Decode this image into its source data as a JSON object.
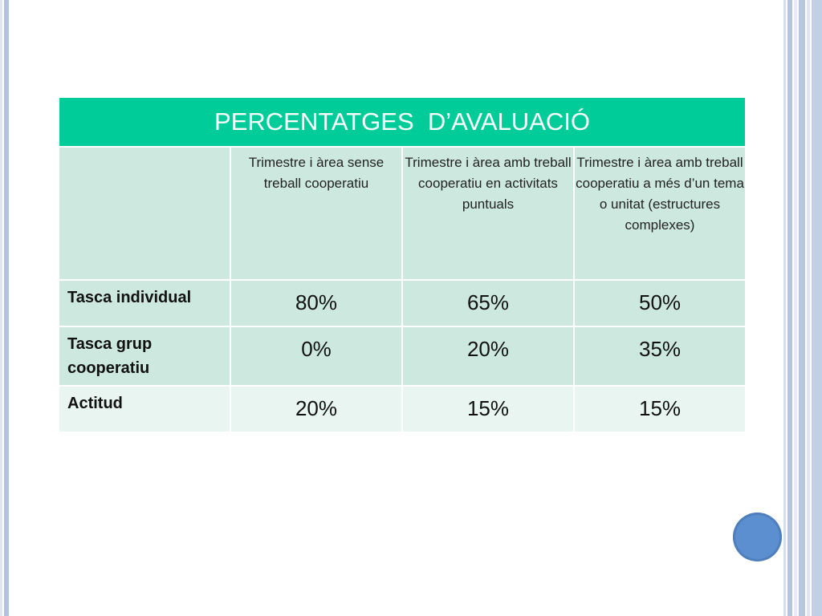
{
  "table": {
    "title": "PERCENTATGES  D’AVALUACIÓ",
    "corner": "",
    "columns": [
      "Trimestre i àrea sense treball cooperatiu",
      "Trimestre i àrea amb treball cooperatiu en activitats puntuals",
      "Trimestre i àrea amb treball cooperatiu a més d’un tema o unitat (estructures complexes)"
    ],
    "rows": [
      {
        "label": "Tasca individual",
        "values": [
          "80%",
          "65%",
          "50%"
        ]
      },
      {
        "label": "Tasca grup cooperatiu",
        "values": [
          "0%",
          "20%",
          "35%"
        ]
      },
      {
        "label": "Actitud",
        "values": [
          "20%",
          "15%",
          "15%"
        ]
      }
    ]
  },
  "colors": {
    "title_bg": "#00cc99",
    "row_dark": "#cde9df",
    "row_light": "#e8f5f0",
    "decoration_circle": "#5b8fcf"
  }
}
